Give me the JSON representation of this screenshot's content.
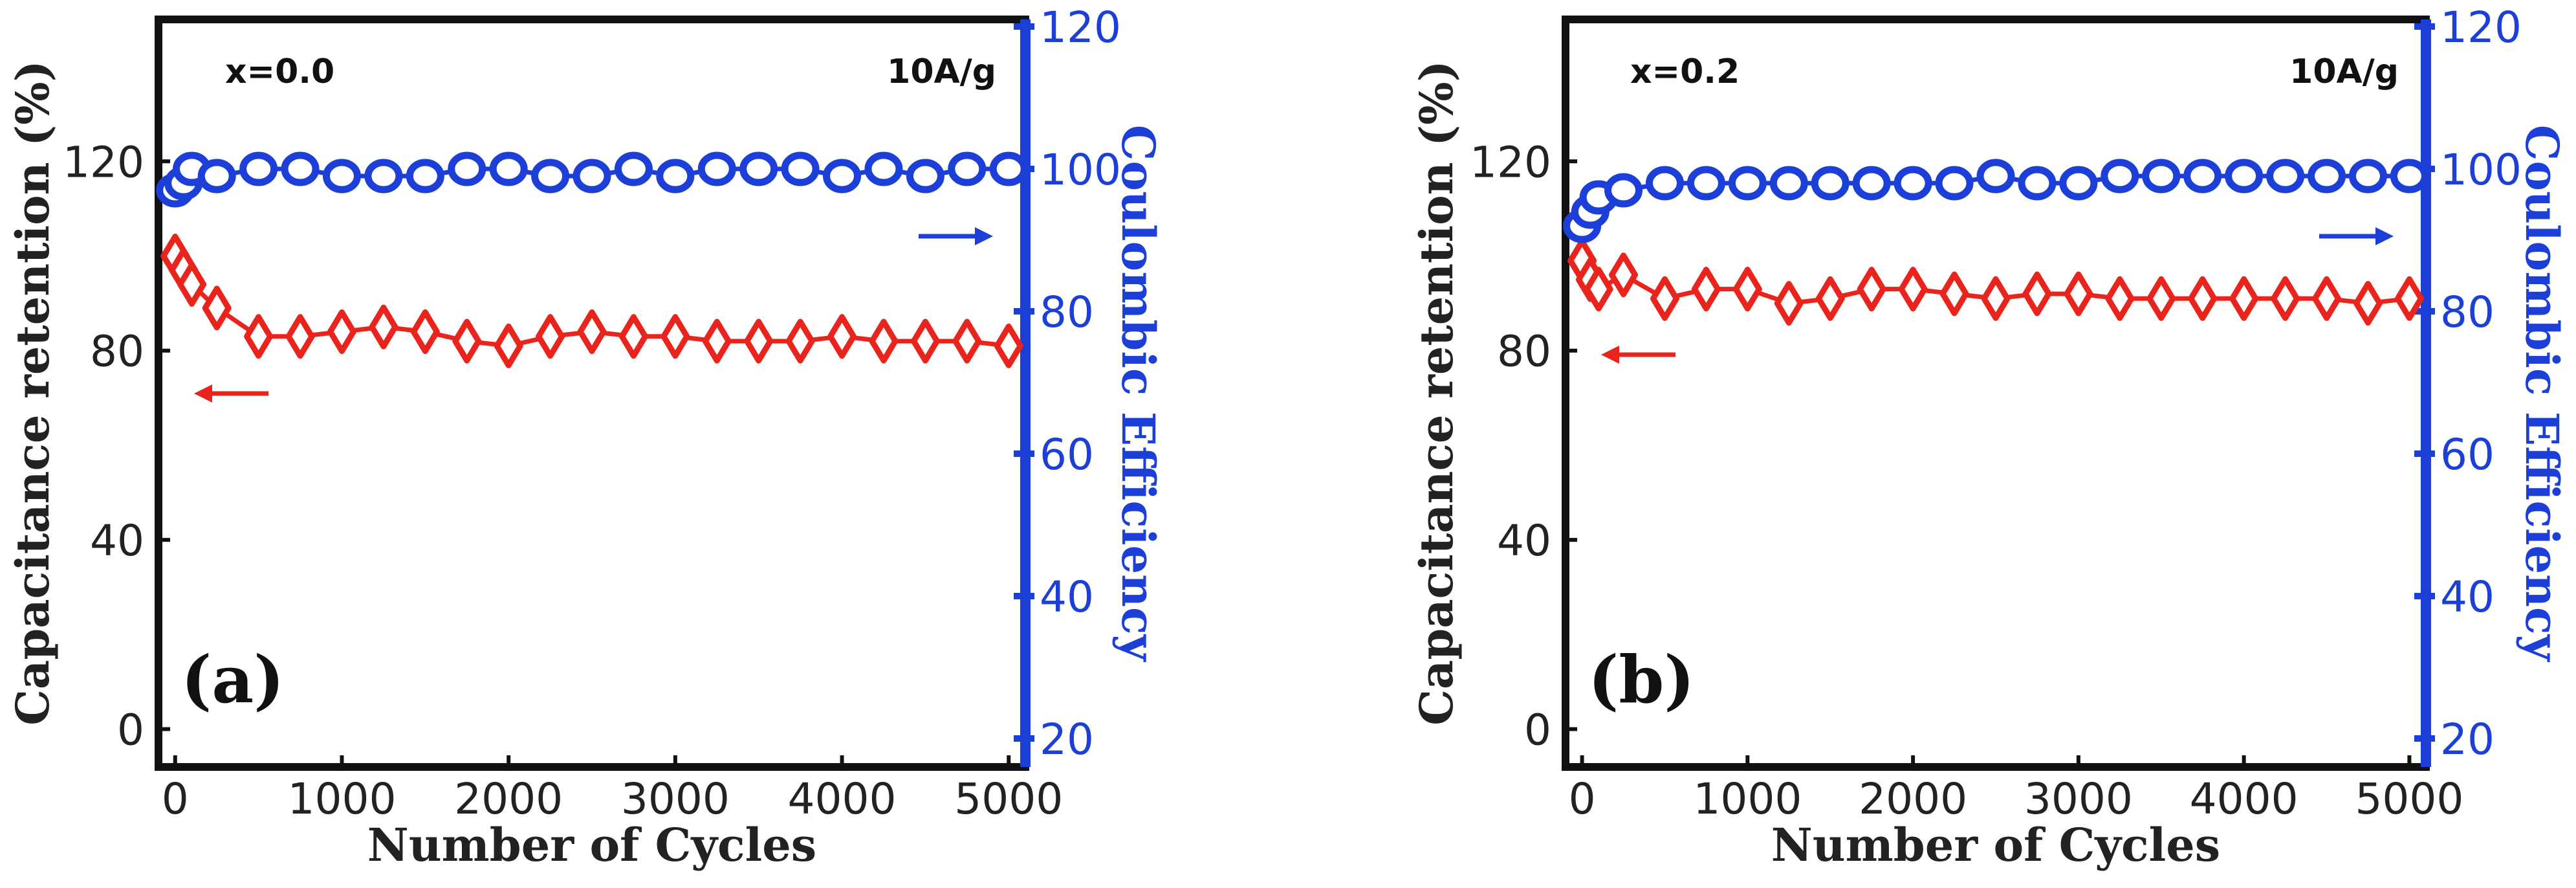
{
  "chart_data": [
    {
      "type": "line",
      "panel_label": "(a)",
      "composition_label": "x=0.0",
      "current_density_label": "10A/g",
      "xlabel": "Number of Cycles",
      "ylabel_left": "Capacitance retention (%)",
      "ylabel_right": "Coulombic Efficiency",
      "xlim": [
        -100,
        5100
      ],
      "ylim_left": [
        -8,
        150
      ],
      "ylim_right": [
        16,
        121
      ],
      "x_ticks": [
        "0",
        "1000",
        "2000",
        "3000",
        "4000",
        "5000"
      ],
      "y_left_ticks": [
        "0",
        "40",
        "80",
        "120"
      ],
      "y_right_ticks": [
        "20",
        "40",
        "60",
        "80",
        "100",
        "120"
      ],
      "series": [
        {
          "name": "Capacitance retention",
          "axis": "left",
          "color": "#e8241c",
          "marker": "diamond",
          "x": [
            0,
            50,
            100,
            250,
            500,
            750,
            1000,
            1250,
            1500,
            1750,
            2000,
            2250,
            2500,
            2750,
            3000,
            3250,
            3500,
            3750,
            4000,
            4250,
            4500,
            4750,
            5000
          ],
          "values": [
            100,
            97,
            94,
            89,
            83,
            83,
            84,
            85,
            84,
            82,
            81,
            83,
            84,
            83,
            83,
            82,
            82,
            82,
            83,
            82,
            82,
            82,
            81
          ]
        },
        {
          "name": "Coulombic Efficiency",
          "axis": "right",
          "color": "#1c3fd8",
          "marker": "circle",
          "x": [
            0,
            50,
            100,
            250,
            500,
            750,
            1000,
            1250,
            1500,
            1750,
            2000,
            2250,
            2500,
            2750,
            3000,
            3250,
            3500,
            3750,
            4000,
            4250,
            4500,
            4750,
            5000
          ],
          "values": [
            97,
            98,
            100,
            99,
            100,
            100,
            99,
            99,
            99,
            100,
            100,
            99,
            99,
            100,
            99,
            100,
            100,
            100,
            99,
            100,
            99,
            100,
            100
          ]
        }
      ],
      "arrows": [
        {
          "series": "Capacitance retention",
          "direction": "left"
        },
        {
          "series": "Coulombic Efficiency",
          "direction": "right"
        }
      ]
    },
    {
      "type": "line",
      "panel_label": "(b)",
      "composition_label": "x=0.2",
      "current_density_label": "10A/g",
      "xlabel": "Number of Cycles",
      "ylabel_left": "Capacitance retention (%)",
      "ylabel_right": "Coulombic Efficiency",
      "xlim": [
        -100,
        5100
      ],
      "ylim_left": [
        -8,
        150
      ],
      "ylim_right": [
        16,
        121
      ],
      "x_ticks": [
        "0",
        "1000",
        "2000",
        "3000",
        "4000",
        "5000"
      ],
      "y_left_ticks": [
        "0",
        "40",
        "80",
        "120"
      ],
      "y_right_ticks": [
        "20",
        "40",
        "60",
        "80",
        "100",
        "120"
      ],
      "series": [
        {
          "name": "Capacitance retention",
          "axis": "left",
          "color": "#e8241c",
          "marker": "diamond",
          "x": [
            0,
            50,
            100,
            250,
            500,
            750,
            1000,
            1250,
            1500,
            1750,
            2000,
            2250,
            2500,
            2750,
            3000,
            3250,
            3500,
            3750,
            4000,
            4250,
            4500,
            4750,
            5000
          ],
          "values": [
            99,
            95,
            93,
            96,
            91,
            93,
            93,
            90,
            91,
            93,
            93,
            92,
            91,
            92,
            92,
            91,
            91,
            91,
            91,
            91,
            91,
            90,
            91
          ]
        },
        {
          "name": "Coulombic Efficiency",
          "axis": "right",
          "color": "#1c3fd8",
          "marker": "circle",
          "x": [
            0,
            50,
            100,
            250,
            500,
            750,
            1000,
            1250,
            1500,
            1750,
            2000,
            2250,
            2500,
            2750,
            3000,
            3250,
            3500,
            3750,
            4000,
            4250,
            4500,
            4750,
            5000
          ],
          "values": [
            92,
            94,
            96,
            97,
            98,
            98,
            98,
            98,
            98,
            98,
            98,
            98,
            99,
            98,
            98,
            99,
            99,
            99,
            99,
            99,
            99,
            99,
            99
          ]
        }
      ],
      "arrows": [
        {
          "series": "Capacitance retention",
          "direction": "left"
        },
        {
          "series": "Coulombic Efficiency",
          "direction": "right"
        }
      ]
    }
  ]
}
